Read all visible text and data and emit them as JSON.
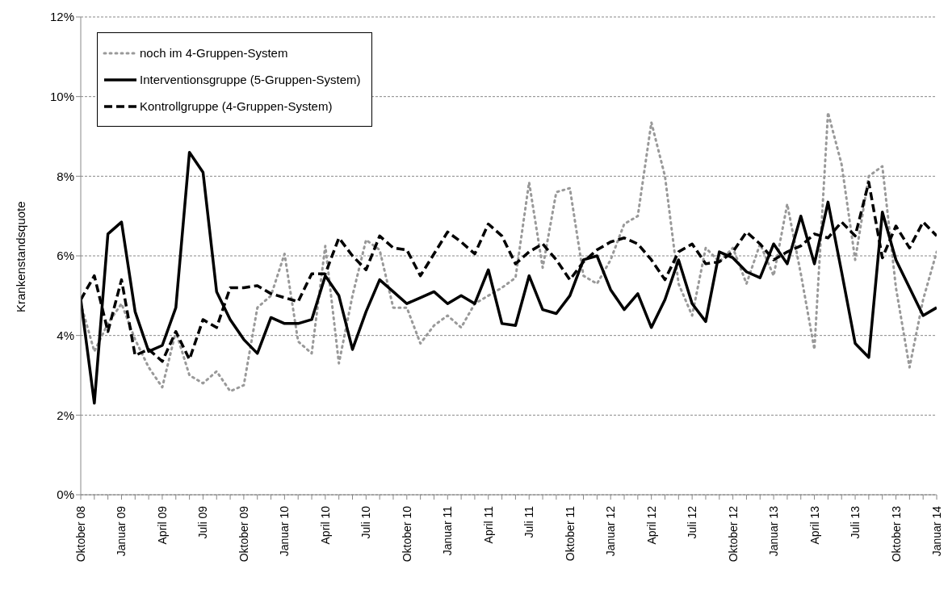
{
  "chart_data": {
    "type": "line",
    "ylabel": "Krankenstandsquote",
    "categories": [
      "Oktober 08",
      null,
      null,
      "Januar 09",
      null,
      null,
      "April 09",
      null,
      null,
      "Juli 09",
      null,
      null,
      "Oktober 09",
      null,
      null,
      "Januar 10",
      null,
      null,
      "April 10",
      null,
      null,
      "Juli 10",
      null,
      null,
      "Oktober 10",
      null,
      null,
      "Januar 11",
      null,
      null,
      "April 11",
      null,
      null,
      "Juli 11",
      null,
      null,
      "Oktober 11",
      null,
      null,
      "Januar 12",
      null,
      null,
      "April 12",
      null,
      null,
      "Juli 12",
      null,
      null,
      "Oktober 12",
      null,
      null,
      "Januar 13",
      null,
      null,
      "April 13",
      null,
      null,
      "Juli 13",
      null,
      null,
      "Oktober 13",
      null,
      null,
      "Januar 14"
    ],
    "series": [
      {
        "name": "noch im 4-Gruppen-System",
        "color": "#999999",
        "line_style": "dotted",
        "values": [
          4.8,
          3.6,
          4.3,
          4.8,
          3.9,
          3.2,
          2.7,
          4.1,
          3.0,
          2.8,
          3.1,
          2.6,
          2.75,
          4.7,
          5.0,
          6.05,
          3.85,
          3.55,
          6.25,
          3.3,
          5.0,
          6.4,
          6.15,
          4.7,
          4.7,
          3.8,
          4.25,
          4.5,
          4.2,
          4.8,
          5.0,
          5.2,
          5.45,
          7.85,
          5.7,
          7.6,
          7.7,
          5.5,
          5.3,
          5.9,
          6.8,
          7.0,
          9.35,
          8.0,
          5.3,
          4.5,
          6.2,
          5.85,
          6.2,
          5.3,
          6.3,
          5.5,
          7.3,
          5.55,
          3.65,
          9.6,
          8.3,
          5.9,
          8.0,
          8.25,
          5.2,
          3.2,
          4.9,
          6.1
        ]
      },
      {
        "name": "Interventionsgruppe (5-Gruppen-System)",
        "color": "#000000",
        "line_style": "solid",
        "values": [
          4.9,
          2.3,
          6.55,
          6.85,
          4.6,
          3.6,
          3.75,
          4.7,
          8.6,
          8.1,
          5.1,
          4.4,
          3.9,
          3.55,
          4.45,
          4.3,
          4.3,
          4.4,
          5.5,
          5.0,
          3.65,
          4.6,
          5.4,
          5.1,
          4.8,
          4.95,
          5.1,
          4.8,
          5.0,
          4.8,
          5.65,
          4.3,
          4.25,
          5.5,
          4.65,
          4.55,
          5.0,
          5.9,
          6.0,
          5.15,
          4.65,
          5.05,
          4.2,
          4.9,
          5.9,
          4.8,
          4.35,
          6.1,
          5.95,
          5.6,
          5.45,
          6.3,
          5.8,
          7.0,
          5.8,
          7.35,
          5.6,
          3.8,
          3.45,
          7.1,
          5.9,
          5.2,
          4.5,
          4.7
        ]
      },
      {
        "name": "Kontrollgruppe (4-Gruppen-System)",
        "color": "#000000",
        "line_style": "dashed",
        "values": [
          4.9,
          5.5,
          4.1,
          5.4,
          3.5,
          3.65,
          3.35,
          4.1,
          3.4,
          4.4,
          4.2,
          5.2,
          5.2,
          5.25,
          5.05,
          4.95,
          4.85,
          5.55,
          5.55,
          6.45,
          6.0,
          5.65,
          6.5,
          6.2,
          6.15,
          5.5,
          6.05,
          6.6,
          6.35,
          6.05,
          6.8,
          6.5,
          5.8,
          6.1,
          6.3,
          5.9,
          5.4,
          5.85,
          6.15,
          6.35,
          6.45,
          6.3,
          5.9,
          5.4,
          6.1,
          6.3,
          5.8,
          5.85,
          6.1,
          6.6,
          6.3,
          5.9,
          6.1,
          6.25,
          6.55,
          6.45,
          6.85,
          6.5,
          7.85,
          5.95,
          6.75,
          6.2,
          6.85,
          6.5
        ]
      }
    ],
    "ylim": [
      0,
      12
    ],
    "yticks": [
      {
        "value": 0,
        "label": "0%"
      },
      {
        "value": 2,
        "label": "2%"
      },
      {
        "value": 4,
        "label": "4%"
      },
      {
        "value": 6,
        "label": "6%"
      },
      {
        "value": 8,
        "label": "8%"
      },
      {
        "value": 10,
        "label": "10%"
      },
      {
        "value": 12,
        "label": "12%"
      }
    ],
    "grid": "y",
    "legend": "top left",
    "marker": "none"
  }
}
